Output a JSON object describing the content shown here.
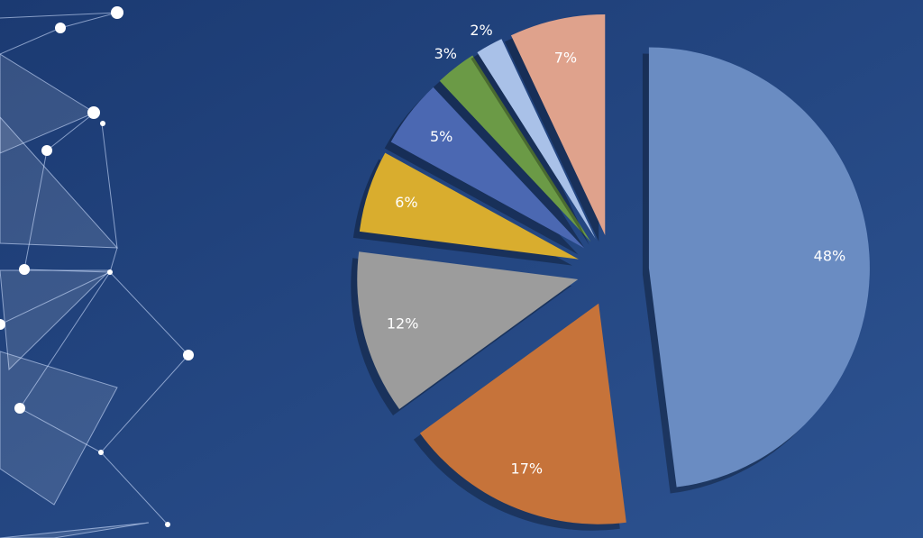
{
  "chart_data": {
    "type": "pie",
    "values": [
      48,
      17,
      12,
      6,
      5,
      3,
      2,
      7
    ],
    "value_labels": [
      "48%",
      "17%",
      "12%",
      "6%",
      "5%",
      "3%",
      "2%",
      "7%"
    ],
    "colors": [
      "#6a8cc2",
      "#c6733a",
      "#9c9c9c",
      "#d9ad2e",
      "#4b68b2",
      "#6b9a46",
      "#a9c1e8",
      "#dfa28c"
    ]
  }
}
